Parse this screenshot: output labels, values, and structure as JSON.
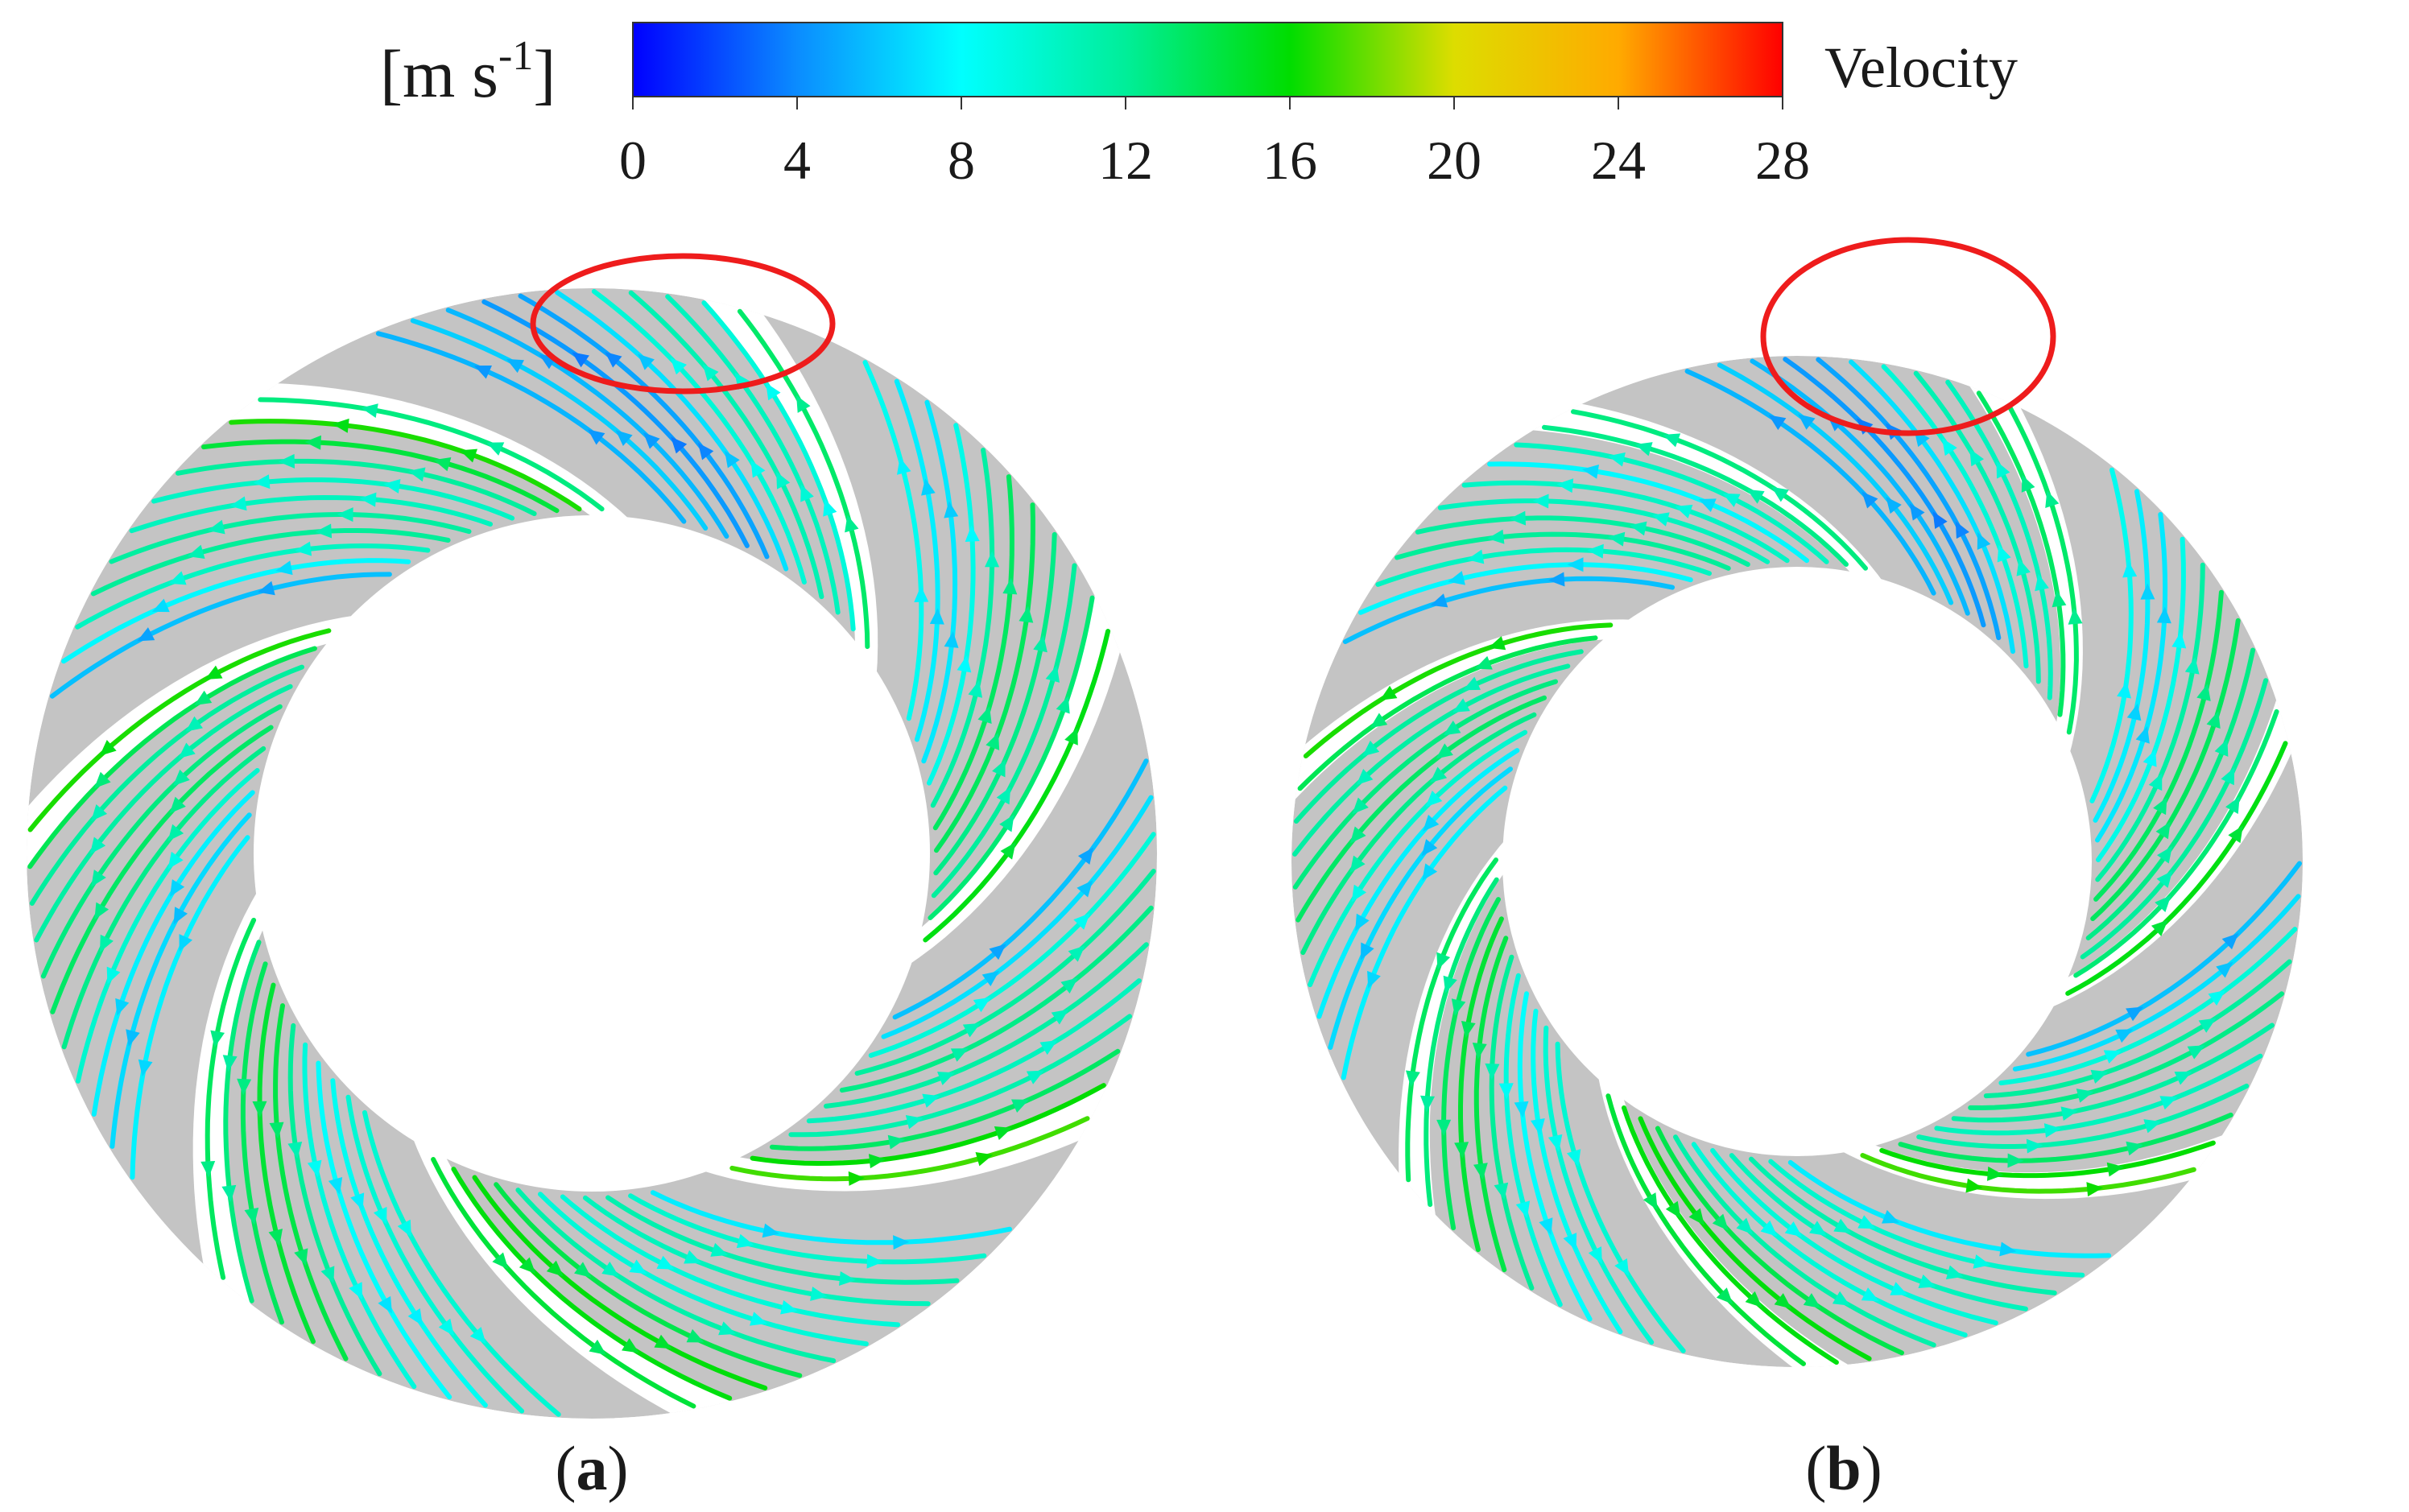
{
  "colorbar": {
    "unit_label_base": "[m s",
    "unit_label_exp": "-1",
    "unit_label_close": "]",
    "quantity_label": "Velocity",
    "min": 0,
    "max": 28,
    "ticks": [
      "0",
      "4",
      "8",
      "12",
      "16",
      "20",
      "24",
      "28"
    ],
    "tick_values": [
      0,
      4,
      8,
      12,
      16,
      20,
      24,
      28
    ],
    "stops": [
      {
        "value": 0,
        "color": "#0000ff"
      },
      {
        "value": 4,
        "color": "#0b8cff"
      },
      {
        "value": 8,
        "color": "#00ffff"
      },
      {
        "value": 12,
        "color": "#00ee99"
      },
      {
        "value": 16,
        "color": "#00dd00"
      },
      {
        "value": 20,
        "color": "#dddd00"
      },
      {
        "value": 24,
        "color": "#ffaa00"
      },
      {
        "value": 28,
        "color": "#ff0000"
      }
    ]
  },
  "panels": [
    {
      "id": "a",
      "caption_open": "(",
      "caption_letter": "a",
      "caption_close": ")",
      "highlight_color": "#ee1c1c"
    },
    {
      "id": "b",
      "caption_open": "(",
      "caption_letter": "b",
      "caption_close": ")",
      "highlight_color": "#ee1c1c"
    }
  ],
  "colors": {
    "passage_fill": "#c4c4c4",
    "background": "#ffffff"
  }
}
